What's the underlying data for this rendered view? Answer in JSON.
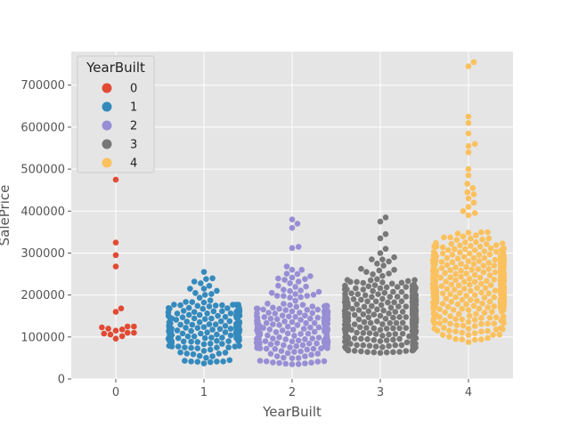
{
  "chart_data": {
    "type": "scatter",
    "subtype": "swarm",
    "xlabel": "YearBuilt",
    "ylabel": "SalePrice",
    "categories": [
      "0",
      "1",
      "2",
      "3",
      "4"
    ],
    "ylim": [
      0,
      780000
    ],
    "yticks": [
      0,
      100000,
      200000,
      300000,
      400000,
      500000,
      600000,
      700000
    ],
    "ytick_labels": [
      "0",
      "100000",
      "200000",
      "300000",
      "400000",
      "500000",
      "600000",
      "700000"
    ],
    "grid": true,
    "legend": {
      "title": "YearBuilt",
      "position": "top-left",
      "entries": [
        "0",
        "1",
        "2",
        "3",
        "4"
      ]
    },
    "colors": [
      "#e24a33",
      "#348abd",
      "#988ed5",
      "#777777",
      "#fbc15e"
    ],
    "background": "#e5e5e5",
    "series": [
      {
        "category": "0",
        "values": [
          475000,
          325000,
          295000,
          268000,
          168000,
          160000,
          125000,
          123000,
          120000,
          118000,
          115000,
          110000,
          108000,
          106000,
          102000,
          96000,
          125000,
          110000
        ]
      },
      {
        "category": "1",
        "distribution": {
          "count": 200,
          "min": 35000,
          "max": 255000,
          "center": 120000,
          "spread": 38000
        },
        "highlights": [
          255000,
          240000,
          238000,
          232000,
          228000,
          222000,
          215000,
          210000,
          205000,
          45000,
          40000,
          37000
        ]
      },
      {
        "category": "2",
        "distribution": {
          "count": 260,
          "min": 35000,
          "max": 380000,
          "center": 125000,
          "spread": 42000
        },
        "highlights": [
          380000,
          370000,
          360000,
          315000,
          312000,
          268000,
          260000,
          250000,
          245000,
          238000,
          232000,
          228000,
          60000,
          50000,
          42000,
          35000
        ]
      },
      {
        "category": "3",
        "distribution": {
          "count": 420,
          "min": 60000,
          "max": 385000,
          "center": 150000,
          "spread": 45000
        },
        "highlights": [
          385000,
          375000,
          345000,
          335000,
          310000,
          300000,
          290000,
          285000,
          280000,
          275000,
          270000,
          70000,
          62000
        ]
      },
      {
        "category": "4",
        "distribution": {
          "count": 520,
          "min": 85000,
          "max": 755000,
          "center": 220000,
          "spread": 55000
        },
        "highlights": [
          755000,
          745000,
          625000,
          610000,
          585000,
          560000,
          555000,
          540000,
          500000,
          485000,
          465000,
          455000,
          445000,
          440000,
          430000,
          420000,
          410000,
          400000,
          395000,
          390000,
          95000,
          88000
        ]
      }
    ]
  }
}
